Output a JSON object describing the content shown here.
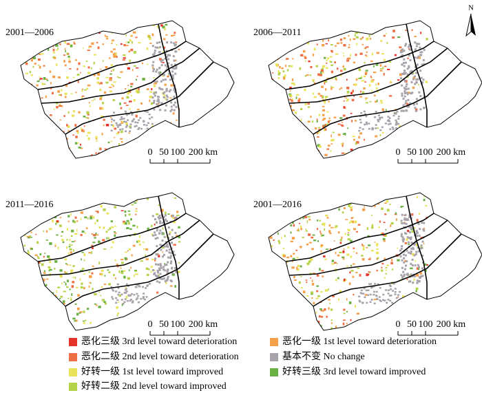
{
  "panels": [
    {
      "title": "2001—2006",
      "scale_labels": [
        "0",
        "50",
        "100",
        "200 km"
      ]
    },
    {
      "title": "2006—2011",
      "scale_labels": [
        "0",
        "50",
        "100",
        "200 km"
      ]
    },
    {
      "title": "2011—2016",
      "scale_labels": [
        "0",
        "50",
        "100",
        "200 km"
      ]
    },
    {
      "title": "2001—2016",
      "scale_labels": [
        "0",
        "50",
        "100",
        "200 km"
      ]
    }
  ],
  "north": "N",
  "legend": {
    "items": [
      {
        "label": "恶化三级 3rd level toward deterioration",
        "color": "#e6332a"
      },
      {
        "label": "恶化二级 2nd level toward deterioration",
        "color": "#ee6f43"
      },
      {
        "label": "好转一级 1st level toward improved",
        "color": "#e8e35a"
      },
      {
        "label": "好转二级 2nd level toward improved",
        "color": "#b5d34a"
      },
      {
        "label": "恶化一级 1st level toward deterioration",
        "color": "#f5a04a"
      },
      {
        "label": "基本不变 No change",
        "color": "#a8a2ab"
      },
      {
        "label": "好转三级 3rd level toward improved",
        "color": "#6bb042"
      }
    ]
  }
}
